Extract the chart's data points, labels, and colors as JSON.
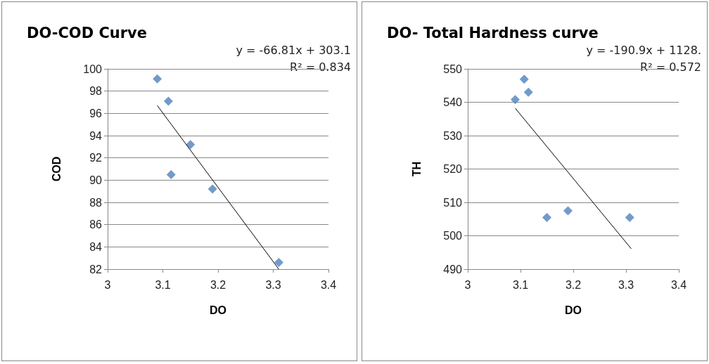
{
  "chart_data": [
    {
      "type": "scatter",
      "title": "DO-COD Curve",
      "xlabel": "DO",
      "ylabel": "COD",
      "marker": "diamond",
      "grid": "y",
      "xlim": [
        3,
        3.4
      ],
      "xticks": [
        3,
        3.1,
        3.2,
        3.3,
        3.4
      ],
      "ylim": [
        82,
        100
      ],
      "yticks": [
        82,
        84,
        86,
        88,
        90,
        92,
        94,
        96,
        98,
        100
      ],
      "annotations": [
        "y = -66.81x + 303.1",
        "R² = 0.834"
      ],
      "series": [
        {
          "color": "#4f81bd",
          "x": [
            3.09,
            3.11,
            3.115,
            3.15,
            3.19,
            3.31
          ],
          "values": [
            99.1,
            97.1,
            90.5,
            93.2,
            89.2,
            82.6
          ]
        },
        {
          "type": "line",
          "color": "#000000",
          "marker": "none",
          "x": [
            3.09,
            3.31
          ],
          "values": [
            96.7,
            82.0
          ]
        }
      ]
    },
    {
      "type": "scatter",
      "title": "DO- Total Hardness curve",
      "xlabel": "DO",
      "ylabel": "TH",
      "marker": "diamond",
      "grid": "y",
      "xlim": [
        3,
        3.4
      ],
      "xticks": [
        3,
        3.1,
        3.2,
        3.3,
        3.4
      ],
      "ylim": [
        490,
        550
      ],
      "yticks": [
        490,
        500,
        510,
        520,
        530,
        540,
        550
      ],
      "annotations": [
        "y = -190.9x + 1128.",
        "R² = 0.572"
      ],
      "series": [
        {
          "color": "#4f81bd",
          "x": [
            3.09,
            3.107,
            3.115,
            3.15,
            3.19,
            3.307
          ],
          "values": [
            540.8,
            546.9,
            543,
            505.5,
            507.5,
            505.5
          ]
        },
        {
          "type": "line",
          "color": "#000000",
          "marker": "none",
          "x": [
            3.09,
            3.31
          ],
          "values": [
            538.2,
            496.1
          ]
        }
      ]
    }
  ]
}
